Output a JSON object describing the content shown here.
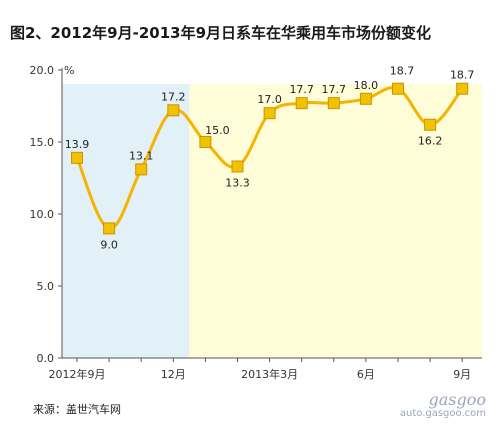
{
  "title": "图2、2012年9月-2013年9月日系车在华乘用车市场份额变化",
  "source": "来源：盖世汽车网",
  "watermark": {
    "brand": "gasgoo",
    "url": "auto.gasgoo.com"
  },
  "colors": {
    "line": "#f5b400",
    "marker": "#f2c200",
    "marker_stroke": "#c99400",
    "shade_2012": "#e2f0f7",
    "shade_2013": "#fffdd8",
    "axis_text": "#333333"
  },
  "chart_data": {
    "type": "line",
    "title": "图2、2012年9月-2013年9月日系车在华乘用车市场份额变化",
    "xlabel": "",
    "ylabel": "%",
    "ylim": [
      0,
      20
    ],
    "yticks": [
      "0.0",
      "5.0",
      "10.0",
      "15.0",
      "20.0"
    ],
    "x_tick_labels": [
      {
        "index": 0,
        "label": "2012年9月"
      },
      {
        "index": 3,
        "label": "12月"
      },
      {
        "index": 6,
        "label": "2013年3月"
      },
      {
        "index": 9,
        "label": "6月"
      },
      {
        "index": 12,
        "label": "9月"
      }
    ],
    "points": [
      {
        "x": "2012-09",
        "y": 13.9,
        "label": "13.9"
      },
      {
        "x": "2012-10",
        "y": 9.0,
        "label": "9.0"
      },
      {
        "x": "2012-11",
        "y": 13.1,
        "label": "13.1"
      },
      {
        "x": "2012-12",
        "y": 17.2,
        "label": "17.2"
      },
      {
        "x": "2013-01",
        "y": 15.0,
        "label": "15.0"
      },
      {
        "x": "2013-02",
        "y": 13.3,
        "label": "13.3"
      },
      {
        "x": "2013-03",
        "y": 17.0,
        "label": "17.0"
      },
      {
        "x": "2013-04",
        "y": 17.7,
        "label": "17.7"
      },
      {
        "x": "2013-05",
        "y": 17.7,
        "label": "17.7"
      },
      {
        "x": "2013-06",
        "y": 18.0,
        "label": "18.0"
      },
      {
        "x": "2013-07",
        "y": 18.7,
        "label": ""
      },
      {
        "x": "2013-08",
        "y": 16.2,
        "label": "16.2"
      },
      {
        "x": "2013-09",
        "y": 18.7,
        "label": "18.7"
      }
    ],
    "extra_annotations": [
      "18.7"
    ],
    "shaded_ranges": [
      {
        "from": "2012-09",
        "to": "2012-12",
        "color": "#e2f0f7"
      },
      {
        "from": "2013-01",
        "to": "2013-09",
        "color": "#fffdd8"
      }
    ],
    "grid": false,
    "legend": "none"
  }
}
